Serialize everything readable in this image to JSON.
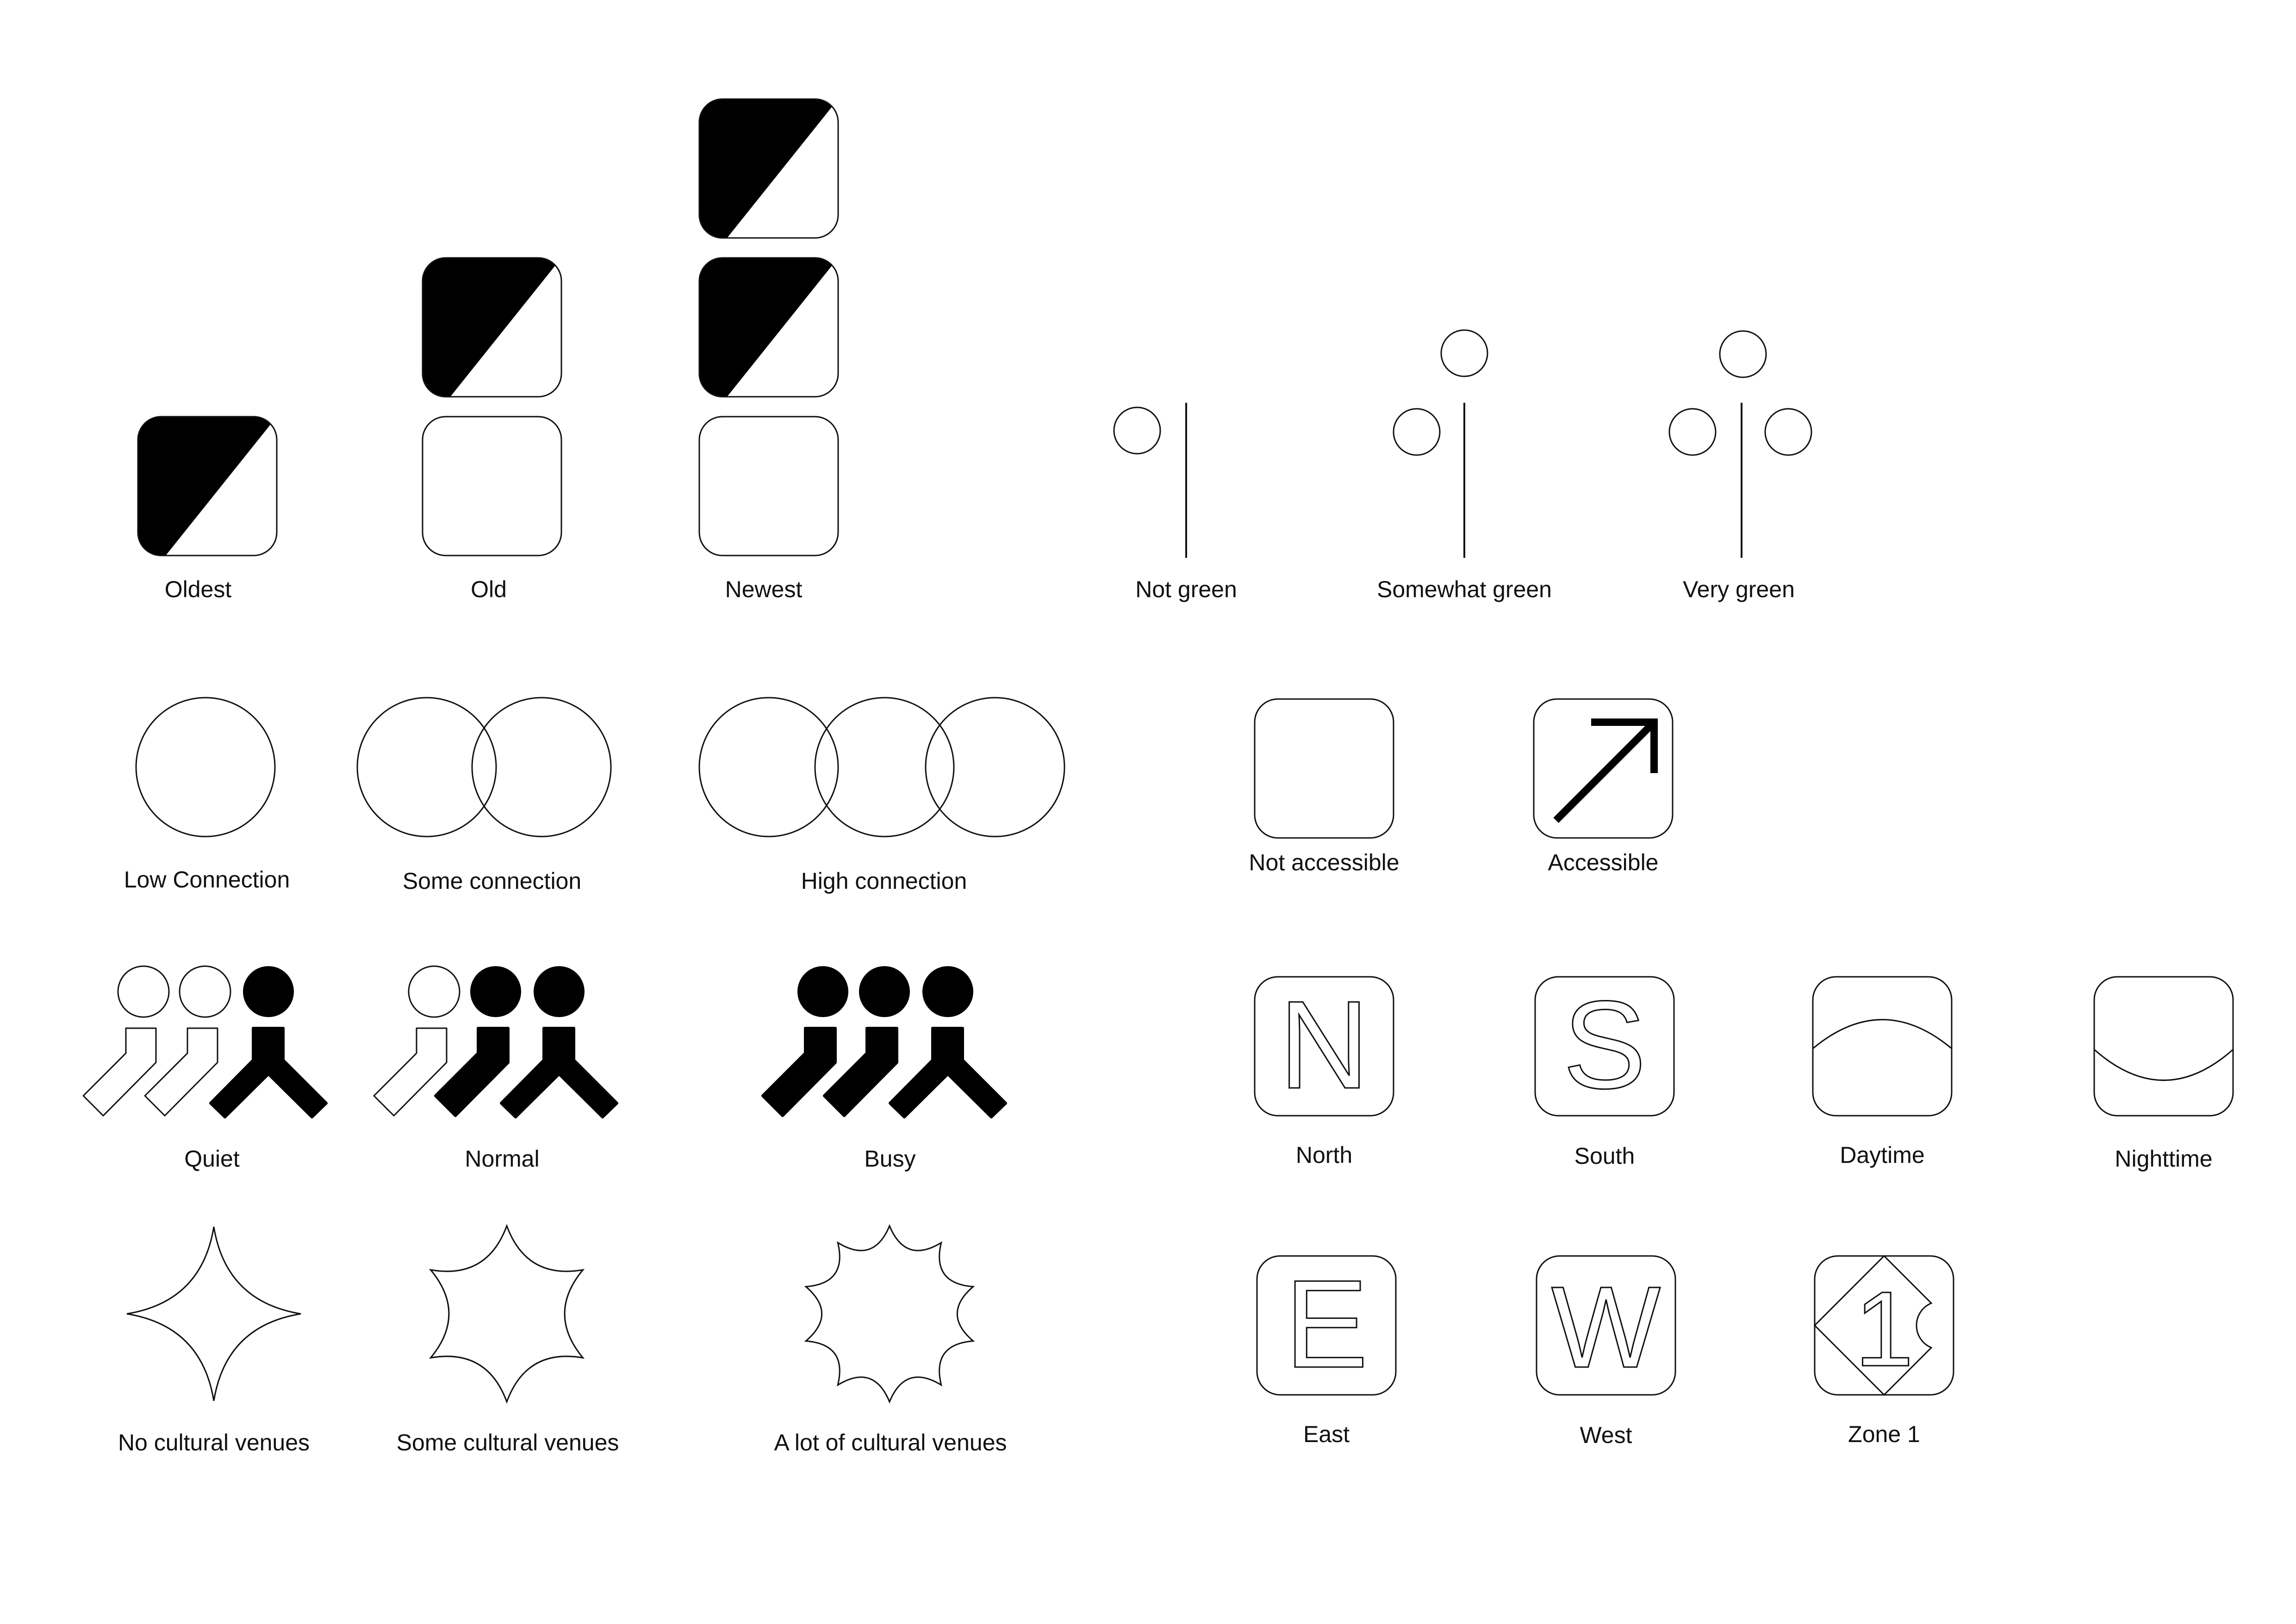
{
  "colors": {
    "ink": "#111111",
    "fill": "#000000",
    "paper": "#ffffff"
  },
  "age": {
    "oldest": {
      "label": "Oldest",
      "icon": "age-oldest-icon"
    },
    "old": {
      "label": "Old",
      "icon": "age-old-icon"
    },
    "newest": {
      "label": "Newest",
      "icon": "age-newest-icon"
    }
  },
  "green": {
    "not": {
      "label": "Not green",
      "icon": "tree-one-leaf-icon"
    },
    "somewhat": {
      "label": "Somewhat green",
      "icon": "tree-two-leaf-icon"
    },
    "very": {
      "label": "Very green",
      "icon": "tree-three-leaf-icon"
    }
  },
  "connection": {
    "low": {
      "label": "Low Connection",
      "icon": "one-circle-icon"
    },
    "some": {
      "label": "Some connection",
      "icon": "two-circles-icon"
    },
    "high": {
      "label": "High connection",
      "icon": "three-circles-icon"
    }
  },
  "access": {
    "not": {
      "label": "Not accessible",
      "icon": "empty-square-icon"
    },
    "yes": {
      "label": "Accessible",
      "icon": "arrow-up-right-icon"
    }
  },
  "crowd": {
    "quiet": {
      "label": "Quiet",
      "icon": "crowd-quiet-icon"
    },
    "normal": {
      "label": "Normal",
      "icon": "crowd-normal-icon"
    },
    "busy": {
      "label": "Busy",
      "icon": "crowd-busy-icon"
    }
  },
  "direction": {
    "north": {
      "label": "North",
      "glyph": "N"
    },
    "south": {
      "label": "South",
      "glyph": "S"
    },
    "east": {
      "label": "East",
      "glyph": "E"
    },
    "west": {
      "label": "West",
      "glyph": "W"
    }
  },
  "time": {
    "day": {
      "label": "Daytime",
      "icon": "arc-up-icon"
    },
    "night": {
      "label": "Nighttime",
      "icon": "arc-down-icon"
    }
  },
  "zone": {
    "label": "Zone 1",
    "glyph": "1"
  },
  "culture": {
    "none": {
      "label": "No cultural venues",
      "icon": "four-point-star-icon"
    },
    "some": {
      "label": "Some cultural venues",
      "icon": "six-point-star-icon"
    },
    "lot": {
      "label": "A lot of cultural venues",
      "icon": "ten-point-burst-icon"
    }
  }
}
